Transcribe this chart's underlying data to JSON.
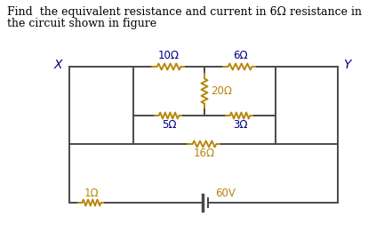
{
  "title_line1": "Find  the equivalent resistance and current in 6Ω resistance in",
  "title_line2": "the circuit shown in figure",
  "background_color": "#ffffff",
  "line_color": "#4a4a4a",
  "resistor_color": "#b8860b",
  "text_color": "#000080",
  "label_color": "#b8860b",
  "label_X": "X",
  "label_Y": "Y",
  "components": {
    "R1": "10Ω",
    "R2": "6Ω",
    "R3": "20Ω",
    "R4": "5Ω",
    "R5": "3Ω",
    "R6": "16Ω",
    "R7": "1Ω",
    "V1": "60V"
  }
}
